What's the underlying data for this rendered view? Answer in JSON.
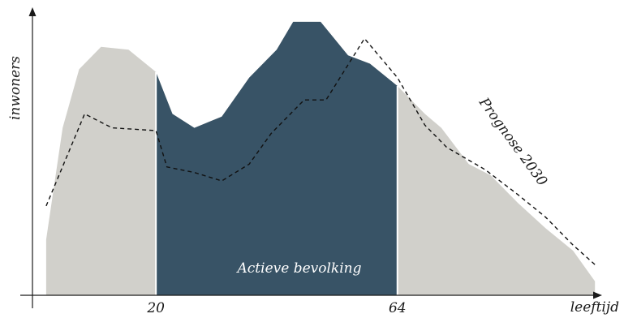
{
  "chart_data": {
    "type": "area",
    "xlabel": "leeftijd",
    "ylabel": "inwoners",
    "x_ticks": [
      {
        "value": 20,
        "label": "20"
      },
      {
        "value": 64,
        "label": "64"
      }
    ],
    "xlim": [
      -2.5,
      101
    ],
    "ylim": [
      0,
      100
    ],
    "annotations": {
      "active_label": "Actieve bevolking",
      "forecast_label": "Prognose 2030"
    },
    "colors": {
      "inactive": "#d1d0cb",
      "active": "#385366",
      "forecast": "#111111"
    },
    "series": [
      {
        "name": "",
        "style": "area",
        "x": [
          0,
          3,
          6,
          10,
          15,
          20,
          23,
          27,
          32,
          37,
          42,
          45,
          50,
          55,
          59,
          64,
          69,
          72,
          77,
          81,
          86,
          91,
          96,
          100
        ],
        "y": [
          20,
          60,
          81,
          89,
          88,
          80,
          65,
          60,
          64,
          78,
          88,
          98,
          98,
          86,
          83,
          75,
          65,
          60,
          47,
          43,
          33,
          24,
          16,
          5
        ]
      },
      {
        "name": "Prognose 2030",
        "style": "dashed",
        "x": [
          0,
          7,
          12,
          20,
          22,
          27,
          32,
          37,
          41,
          47,
          51,
          58,
          64,
          69,
          73,
          80,
          86,
          91,
          96,
          100
        ],
        "y": [
          32,
          65,
          60,
          59,
          46,
          44,
          41,
          47,
          58,
          70,
          70,
          92,
          78,
          61,
          53,
          45,
          36,
          28,
          18,
          11
        ]
      }
    ]
  }
}
